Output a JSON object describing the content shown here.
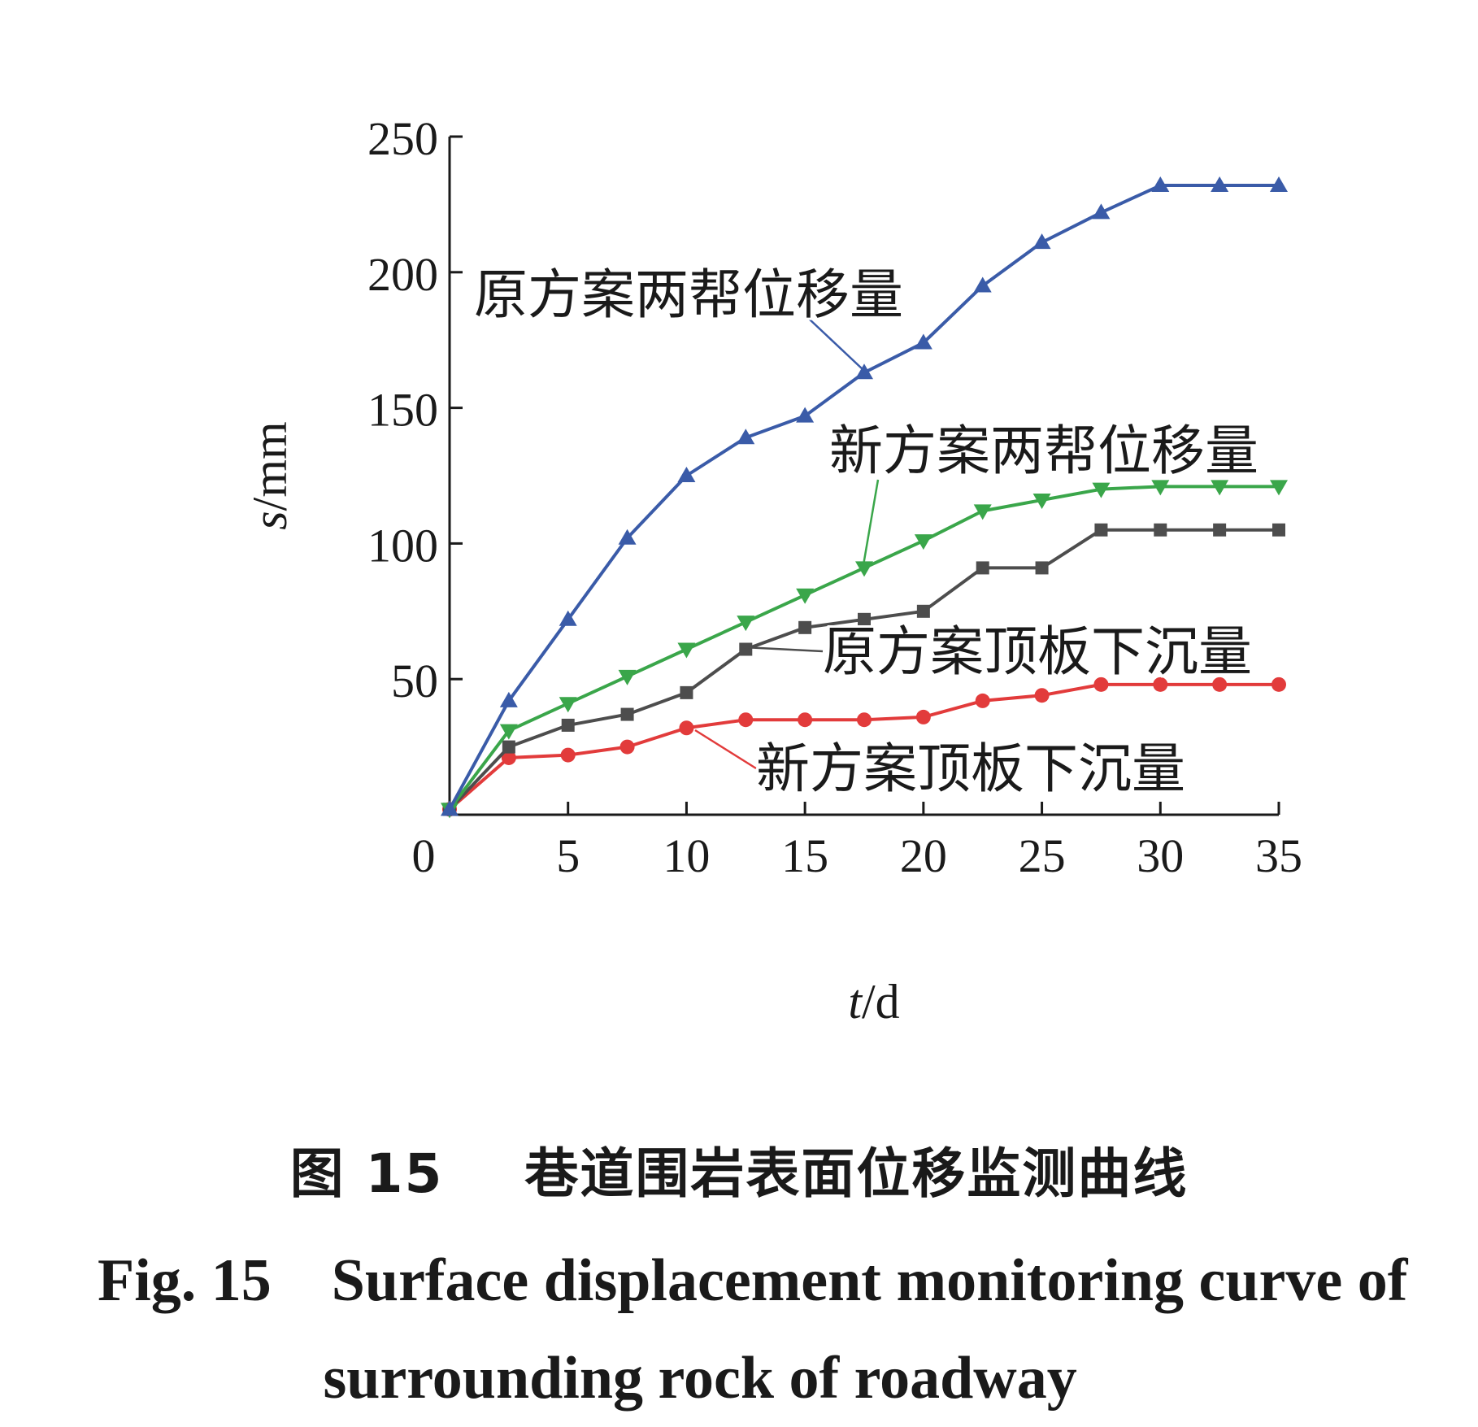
{
  "chart_data": {
    "type": "line",
    "xlabel_var": "t",
    "xlabel_unit": "/d",
    "ylabel_var": "s",
    "ylabel_unit": "/mm",
    "xlim": [
      0,
      35
    ],
    "ylim": [
      0,
      250
    ],
    "x_ticks": [
      0,
      5,
      10,
      15,
      20,
      25,
      30,
      35
    ],
    "y_ticks": [
      50,
      100,
      150,
      200,
      250
    ],
    "grid": false,
    "x": [
      0,
      2.5,
      5,
      7.5,
      10,
      12.5,
      15,
      17.5,
      20,
      22.5,
      25,
      27.5,
      30,
      32.5,
      35
    ],
    "series": [
      {
        "name": "原方案两帮位移量",
        "color": "#3a5ba8",
        "marker": "triangle-up",
        "values": [
          2,
          42,
          72,
          102,
          125,
          139,
          147,
          163,
          174,
          195,
          211,
          222,
          232,
          232,
          232
        ]
      },
      {
        "name": "新方案两帮位移量",
        "color": "#3aa64a",
        "marker": "triangle-down",
        "values": [
          2,
          31,
          41,
          51,
          61,
          71,
          81,
          91,
          101,
          112,
          116,
          120,
          121,
          121,
          121
        ]
      },
      {
        "name": "原方案顶板下沉量",
        "color": "#4d4d4d",
        "marker": "square",
        "values": [
          2,
          25,
          33,
          37,
          45,
          61,
          69,
          72,
          75,
          91,
          91,
          105,
          105,
          105,
          105
        ]
      },
      {
        "name": "新方案顶板下沉量",
        "color": "#e23b3b",
        "marker": "circle",
        "values": [
          2,
          21,
          22,
          25,
          32,
          35,
          35,
          35,
          36,
          42,
          44,
          48,
          48,
          48,
          48
        ]
      }
    ],
    "annotations": [
      {
        "series": 0,
        "text": "原方案两帮位移量"
      },
      {
        "series": 1,
        "text": "新方案两帮位移量"
      },
      {
        "series": 2,
        "text": "原方案顶板下沉量"
      },
      {
        "series": 3,
        "text": "新方案顶板下沉量"
      }
    ]
  },
  "caption": {
    "cn": "图 15    巷道围岩表面位移监测曲线",
    "en": "Fig. 15    Surface displacement monitoring curve of\n               surrounding rock of roadway"
  }
}
